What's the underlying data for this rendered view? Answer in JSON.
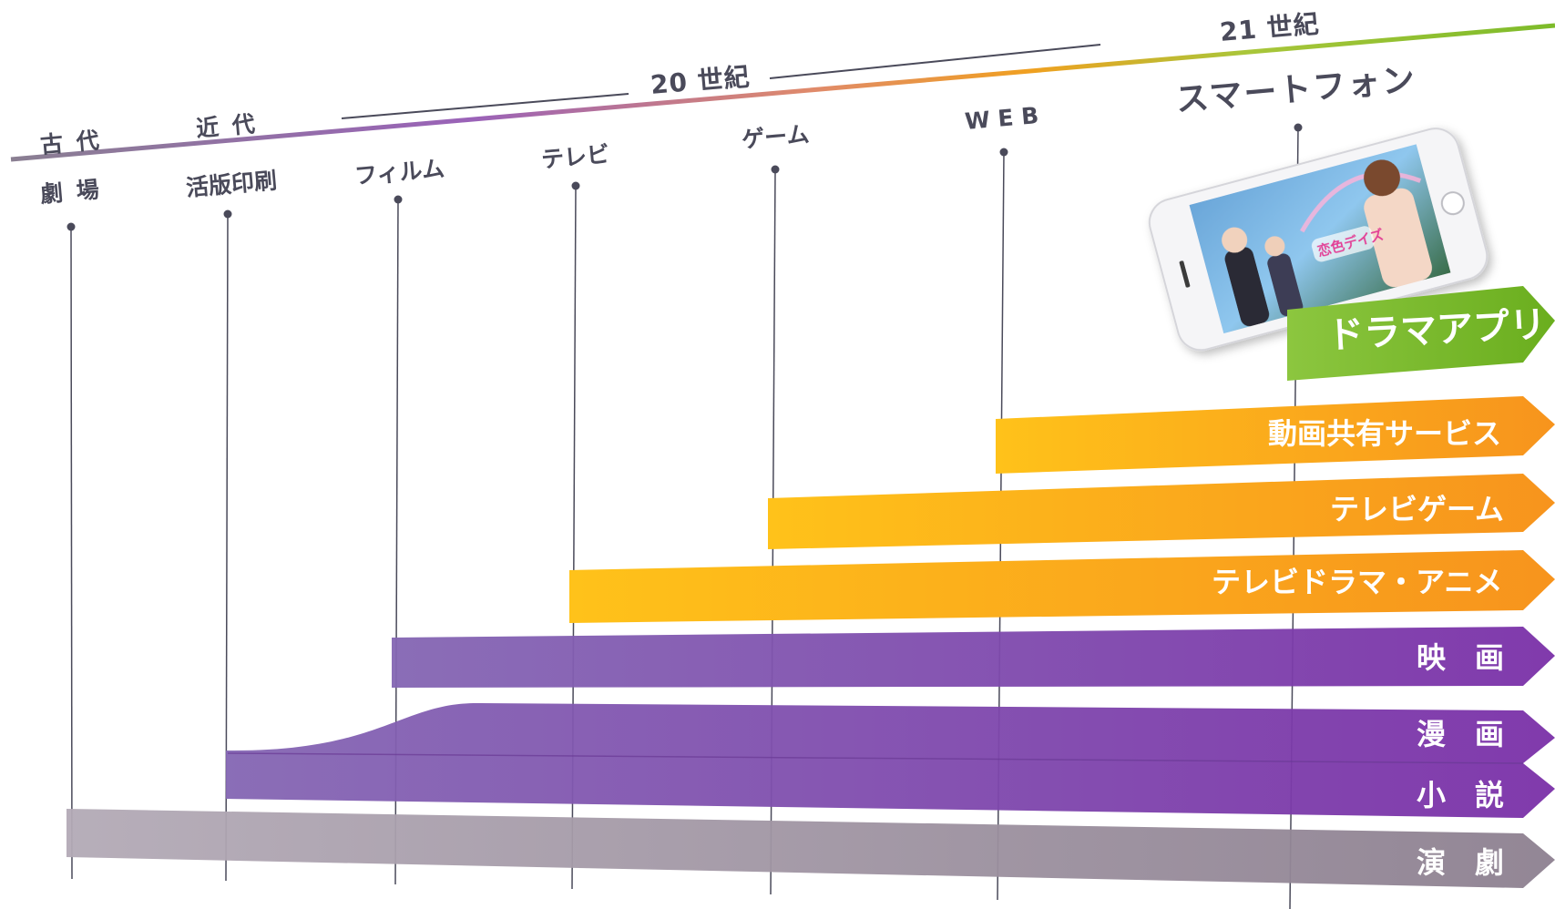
{
  "eras": {
    "ancient": "古 代",
    "modern": "近 代",
    "c20": "20 世紀",
    "c21": "21 世紀"
  },
  "milestones": {
    "theater": "劇 場",
    "printing": "活版印刷",
    "film": "フィルム",
    "tv": "テレビ",
    "game": "ゲーム",
    "web": "W E B",
    "smartphone": "スマートフォン"
  },
  "bands": {
    "drama_app": "ドラマアプリ",
    "video_sharing": "動画共有サービス",
    "tv_game": "テレビゲーム",
    "tv_drama_anime": "テレビドラマ・アニメ",
    "movie": "映　画",
    "manga": "漫　画",
    "novel": "小　説",
    "drama": "演　劇"
  },
  "phone_screen_title": "恋色デイズ",
  "colors": {
    "text_dark": "#4a4a5a",
    "green": "#7dbb2a",
    "orange": "#f7a51c",
    "yellow": "#f9c40f",
    "purple": "#7d3fa5",
    "gray": "#9b8f9c"
  }
}
